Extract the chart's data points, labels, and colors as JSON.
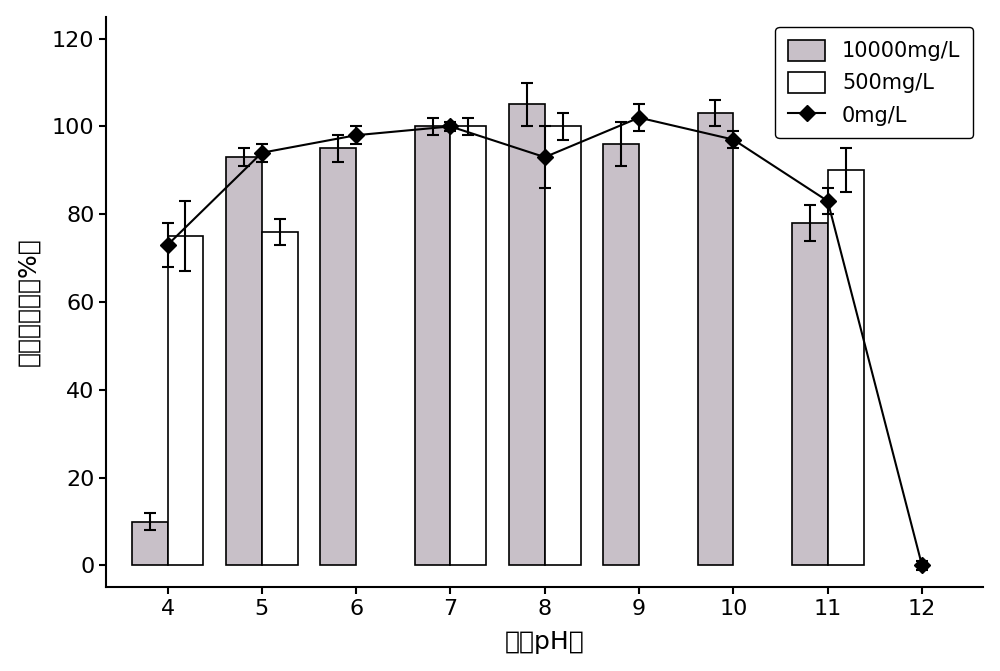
{
  "ph_values": [
    4,
    5,
    6,
    7,
    8,
    9,
    10,
    11,
    12
  ],
  "bar10000": [
    10,
    93,
    95,
    100,
    105,
    96,
    103,
    78,
    null
  ],
  "bar10000_err": [
    2,
    2,
    3,
    2,
    5,
    5,
    3,
    4,
    null
  ],
  "bar500": [
    75,
    76,
    null,
    100,
    100,
    null,
    null,
    90,
    null
  ],
  "bar500_err": [
    8,
    3,
    null,
    2,
    3,
    null,
    null,
    5,
    null
  ],
  "line0mg": [
    73,
    94,
    98,
    100,
    93,
    102,
    97,
    83,
    0
  ],
  "line0mg_err": [
    5,
    2,
    2,
    1,
    7,
    3,
    2,
    3,
    1
  ],
  "bar10000_color": "#c8c0c8",
  "bar500_color": "#ffffff",
  "bar_edge_color": "#000000",
  "line_color": "#000000",
  "title": "",
  "xlabel": "不同pH値",
  "ylabel": "相对抜制率（%）",
  "ylim": [
    -5,
    125
  ],
  "yticks": [
    0,
    20,
    40,
    60,
    80,
    100,
    120
  ],
  "legend_labels": [
    "10000mg/L",
    "500mg/L",
    "0mg/L"
  ],
  "bar_width": 0.38,
  "xlabel_fontsize": 18,
  "ylabel_fontsize": 18,
  "tick_fontsize": 16,
  "legend_fontsize": 15
}
